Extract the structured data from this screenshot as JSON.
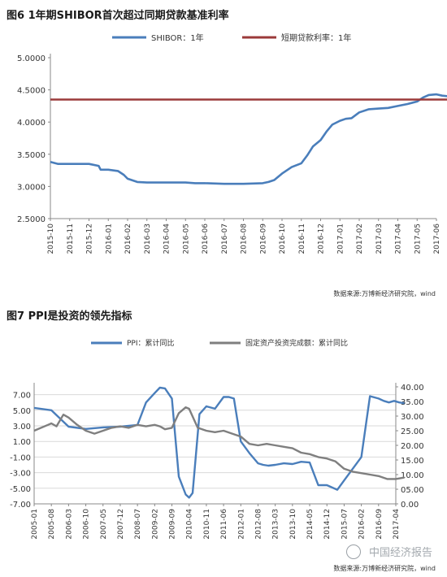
{
  "figures": [
    {
      "title": "图6  1年期SHIBOR首次超过同期贷款基准利率",
      "source": "数据来源:万博新经济研究院，wind"
    },
    {
      "title": "图7   PPI是投资的领先指标",
      "source": "数据来源:万博新经济研究院，wind",
      "watermark": "中国经济报告"
    }
  ],
  "chart_data": [
    {
      "type": "line",
      "title": "图6  1年期SHIBOR首次超过同期贷款基准利率",
      "x_tick_labels": [
        "2015-10",
        "2015-11",
        "2015-12",
        "2016-01",
        "2016-02",
        "2016-03",
        "2016-04",
        "2016-05",
        "2016-06",
        "2016-07",
        "2016-08",
        "2016-09",
        "2016-10",
        "2016-11",
        "2016-12",
        "2017-01",
        "2017-02",
        "2017-03",
        "2017-04",
        "2017-05",
        "2017-06"
      ],
      "y_tick_labels": [
        "2.5000",
        "3.0000",
        "3.5000",
        "4.0000",
        "4.5000",
        "5.0000"
      ],
      "ylim": [
        2.5,
        5.0
      ],
      "legend_position": "top",
      "grid": false,
      "series": [
        {
          "name": "SHIBOR：1年",
          "color": "#4a7ebb",
          "x": [
            0,
            0.4,
            1,
            2,
            2.5,
            2.6,
            3,
            3.5,
            3.8,
            4,
            4.5,
            5,
            6,
            7,
            7.5,
            8,
            9,
            10,
            11,
            11.3,
            11.6,
            12,
            12.5,
            13,
            13.3,
            13.6,
            14,
            14.3,
            14.6,
            15,
            15.3,
            15.6,
            16,
            16.5,
            17,
            17.5,
            18,
            18.5,
            19,
            19.3,
            19.6,
            20,
            20.3,
            20.6
          ],
          "y": [
            3.38,
            3.35,
            3.35,
            3.35,
            3.32,
            3.26,
            3.26,
            3.24,
            3.18,
            3.12,
            3.07,
            3.06,
            3.06,
            3.06,
            3.05,
            3.05,
            3.04,
            3.04,
            3.05,
            3.07,
            3.1,
            3.2,
            3.3,
            3.36,
            3.48,
            3.62,
            3.72,
            3.85,
            3.96,
            4.02,
            4.05,
            4.06,
            4.15,
            4.2,
            4.21,
            4.22,
            4.25,
            4.28,
            4.32,
            4.38,
            4.42,
            4.43,
            4.41,
            4.4
          ]
        },
        {
          "name": "短期贷款利率：1年",
          "color": "#9b3a3a",
          "x": [
            0,
            20.6
          ],
          "y": [
            4.35,
            4.35
          ]
        }
      ]
    },
    {
      "type": "line",
      "title": "图7   PPI是投资的领先指标",
      "x_tick_labels": [
        "2005-01",
        "2005-08",
        "2006-03",
        "2006-10",
        "2007-05",
        "2007-12",
        "2008-07",
        "2009-02",
        "2009-09",
        "2010-04",
        "2010-11",
        "2011-06",
        "2012-01",
        "2012-08",
        "2013-03",
        "2013-10",
        "2014-05",
        "2014-12",
        "2015-07",
        "2016-02",
        "2016-09",
        "2017-04"
      ],
      "y_left_tick_labels": [
        "-7.00",
        "-5.00",
        "-3.00",
        "-1.00",
        "1.00",
        "3.00",
        "5.00",
        "7.00"
      ],
      "y_right_tick_labels": [
        "0.00",
        "05.00",
        "10.00",
        "15.00",
        "20.00",
        "25.00",
        "30.00",
        "35.00",
        "40.00"
      ],
      "ylim_left": [
        -7,
        8
      ],
      "ylim_right": [
        0,
        40
      ],
      "legend_position": "top",
      "grid": true,
      "series": [
        {
          "name": "PPI：累计同比",
          "axis": "left",
          "color": "#4a7ebb",
          "x": [
            0,
            1,
            2,
            3,
            4,
            5,
            6,
            6.5,
            7,
            7.3,
            7.6,
            8,
            8.4,
            8.8,
            9,
            9.2,
            9.6,
            10,
            10.5,
            11,
            11.3,
            11.6,
            12,
            12.5,
            13,
            13.3,
            13.6,
            14,
            14.5,
            15,
            15.5,
            16,
            16.5,
            17,
            17.2,
            17.6,
            18,
            18.5,
            19,
            19.5,
            20,
            20.3,
            20.6,
            20.9,
            21.2,
            21.5
          ],
          "y": [
            5.3,
            5.0,
            2.9,
            2.6,
            2.8,
            2.9,
            3.1,
            6.0,
            7.2,
            7.9,
            7.8,
            6.5,
            -3.5,
            -5.8,
            -6.2,
            -5.6,
            4.5,
            5.5,
            5.2,
            6.7,
            6.7,
            6.5,
            1.0,
            -0.5,
            -1.8,
            -2.0,
            -2.1,
            -2.0,
            -1.8,
            -1.9,
            -1.6,
            -1.7,
            -4.6,
            -4.6,
            -4.8,
            -5.2,
            -4.0,
            -2.5,
            -1.0,
            6.8,
            6.5,
            6.2,
            6.0,
            6.2,
            6.0,
            5.9
          ],
          "x_scale": "index_of_tick"
        },
        {
          "name": "固定资产投资完成额：累计同比",
          "axis": "right",
          "color": "#7f7f7f",
          "x": [
            0,
            0.8,
            1,
            1.3,
            1.7,
            2,
            2.5,
            3,
            3.5,
            4,
            4.5,
            5,
            5.5,
            6,
            6.5,
            7,
            7.3,
            7.6,
            8,
            8.4,
            8.8,
            9,
            9.5,
            10,
            10.5,
            11,
            11.5,
            12,
            12.5,
            13,
            13.5,
            14,
            14.5,
            15,
            15.5,
            16,
            16.5,
            17,
            17.5,
            18,
            18.5,
            19,
            19.5,
            20,
            20.5,
            21,
            21.5
          ],
          "y": [
            25.0,
            27.0,
            27.5,
            26.5,
            30.5,
            29.5,
            27.0,
            25.0,
            24.0,
            25.0,
            26.0,
            26.5,
            26.0,
            27.0,
            26.5,
            27.0,
            26.5,
            25.5,
            26.0,
            31.0,
            33.0,
            32.5,
            26.0,
            25.0,
            24.5,
            25.0,
            24.0,
            23.0,
            20.5,
            20.0,
            20.5,
            20.0,
            19.5,
            19.0,
            17.5,
            17.0,
            16.0,
            15.5,
            14.5,
            12.0,
            11.0,
            10.5,
            10.0,
            9.5,
            8.5,
            8.5,
            9.0
          ]
        }
      ]
    }
  ]
}
